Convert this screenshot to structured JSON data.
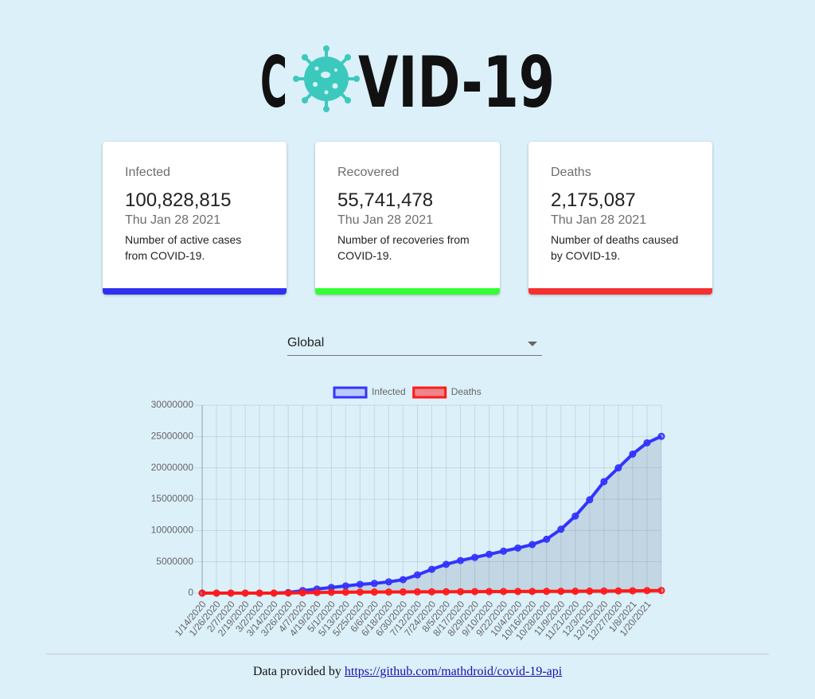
{
  "header": {
    "logo_left": "C",
    "logo_right": "VID-19"
  },
  "cards": [
    {
      "label": "Infected",
      "value": "100,828,815",
      "date": "Thu Jan 28 2021",
      "description": "Number of active cases from COVID-19.",
      "color": "#3030f0"
    },
    {
      "label": "Recovered",
      "value": "55,741,478",
      "date": "Thu Jan 28 2021",
      "description": "Number of recoveries from COVID-19.",
      "color": "#33ff33"
    },
    {
      "label": "Deaths",
      "value": "2,175,087",
      "date": "Thu Jan 28 2021",
      "description": "Number of deaths caused by COVID-19.",
      "color": "#f53030"
    }
  ],
  "country_picker": {
    "selected": "Global"
  },
  "chart_data": {
    "type": "line",
    "categories": [
      "1/14/2020",
      "1/26/2020",
      "2/7/2020",
      "2/19/2020",
      "3/2/2020",
      "3/14/2020",
      "3/26/2020",
      "4/7/2020",
      "4/19/2020",
      "5/1/2020",
      "5/13/2020",
      "5/25/2020",
      "6/6/2020",
      "6/18/2020",
      "6/30/2020",
      "7/12/2020",
      "7/24/2020",
      "8/5/2020",
      "8/17/2020",
      "8/29/2020",
      "9/10/2020",
      "9/22/2020",
      "10/4/2020",
      "10/16/2020",
      "10/28/2020",
      "11/9/2020",
      "11/21/2020",
      "12/3/2020",
      "12/15/2020",
      "12/27/2020",
      "1/8/2021",
      "1/20/2021",
      null
    ],
    "series": [
      {
        "name": "Infected",
        "color": "#3333ff",
        "values": [
          0,
          0,
          0,
          0,
          0,
          0,
          100000,
          400000,
          650000,
          900000,
          1150000,
          1400000,
          1550000,
          1800000,
          2150000,
          2900000,
          3800000,
          4600000,
          5200000,
          5700000,
          6200000,
          6700000,
          7200000,
          7750000,
          8600000,
          10200000,
          12300000,
          14900000,
          17800000,
          20000000,
          22200000,
          24000000,
          25030000
        ]
      },
      {
        "name": "Deaths",
        "color": "#ff1a1a",
        "values": [
          0,
          0,
          0,
          0,
          0,
          0,
          20000,
          60000,
          100000,
          130000,
          150000,
          160000,
          170000,
          180000,
          190000,
          200000,
          210000,
          220000,
          230000,
          240000,
          250000,
          260000,
          265000,
          270000,
          280000,
          290000,
          300000,
          310000,
          330000,
          350000,
          370000,
          400000,
          420000
        ]
      }
    ],
    "ylim": [
      0,
      30000000
    ],
    "yticks": [
      0,
      5000000,
      10000000,
      15000000,
      20000000,
      25000000,
      30000000
    ],
    "grid": true,
    "legend": "top"
  },
  "footer": {
    "text": "Data provided by",
    "link": "https://github.com/mathdroid/covid-19-api"
  }
}
